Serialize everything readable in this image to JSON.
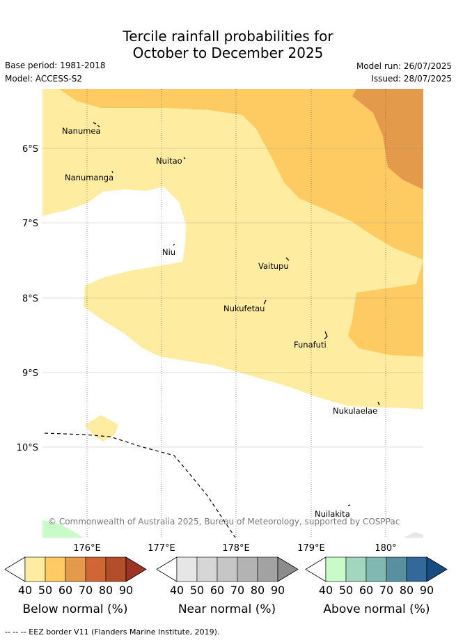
{
  "title_line1": "Tercile rainfall probabilities for",
  "title_line2": "October to December 2025",
  "base_period": "Base period: 1981-2018",
  "model": "Model: ACCESS-S2",
  "model_run": "Model run: 26/07/2025",
  "issued": "Issued: 28/07/2025",
  "copyright": "© Commonwealth of Australia 2025, Bureau of Meteorology, supported by COSPPac",
  "map": {
    "lat_labels": [
      "6°S",
      "7°S",
      "8°S",
      "9°S",
      "10°S"
    ],
    "lon_labels": [
      "176°E",
      "177°E",
      "178°E",
      "179°E",
      "180°"
    ],
    "places": [
      "Nanumea",
      "Nuitao",
      "Nanumanga",
      "Niu",
      "Vaitupu",
      "Nukufetau",
      "Funafuti",
      "Nukulaelae",
      "Nuilakita"
    ]
  },
  "colorbars": {
    "ticks": [
      "40",
      "50",
      "60",
      "70",
      "80",
      "90"
    ],
    "below": {
      "label": "Below normal (%)",
      "colors": [
        "#ffffff",
        "#feeca0",
        "#fecb62",
        "#e39a4b",
        "#d06633",
        "#b34d2a",
        "#9e3424"
      ]
    },
    "near": {
      "label": "Near normal (%)",
      "colors": [
        "#ffffff",
        "#e6e6e6",
        "#d6d6d6",
        "#c6c6c6",
        "#b3b3b3",
        "#a2a2a2",
        "#8c8c8c"
      ]
    },
    "above": {
      "label": "Above normal (%)",
      "colors": [
        "#ffffff",
        "#c9fbc9",
        "#a3d6bf",
        "#81b8b2",
        "#5890a0",
        "#32689a",
        "#174c82"
      ]
    }
  },
  "legend_eez": "--  --  -- EEZ border V11 (Flanders Marine Institute, 2019)."
}
